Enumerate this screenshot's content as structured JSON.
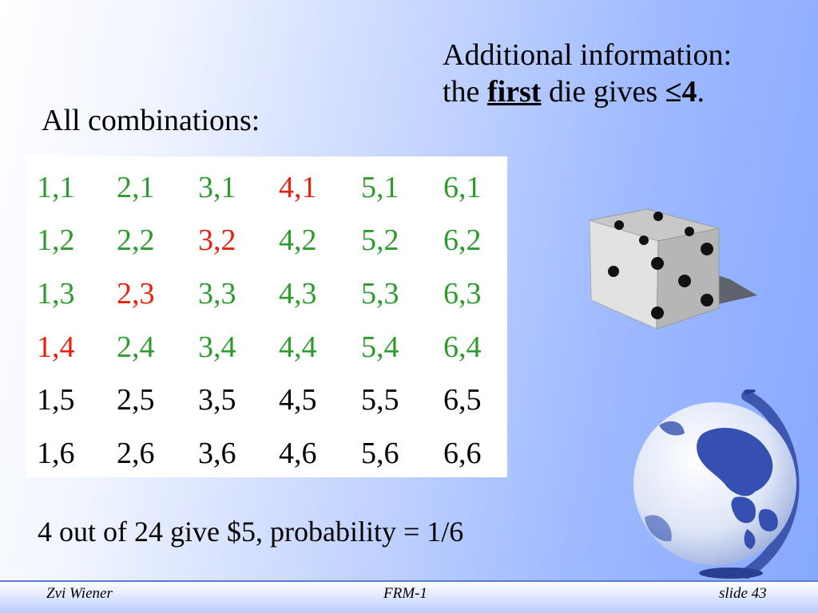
{
  "slide": {
    "info_line1": "Additional information:",
    "info_line2_prefix": "the ",
    "info_line2_first": "first",
    "info_line2_mid": " die gives ",
    "info_line2_value": "≤4",
    "info_line2_end": ".",
    "combos_title": "All combinations:",
    "result": "4 out of 24 give $5, probability = 1/6"
  },
  "colors": {
    "green": "#2e9b2e",
    "red": "#e8210c",
    "black": "#000000"
  },
  "table": {
    "rows": [
      [
        {
          "t": "1,1",
          "c": "green"
        },
        {
          "t": "2,1",
          "c": "green"
        },
        {
          "t": "3,1",
          "c": "green"
        },
        {
          "t": "4,1",
          "c": "red"
        },
        {
          "t": "5,1",
          "c": "green"
        },
        {
          "t": "6,1",
          "c": "green"
        }
      ],
      [
        {
          "t": "1,2",
          "c": "green"
        },
        {
          "t": "2,2",
          "c": "green"
        },
        {
          "t": "3,2",
          "c": "red"
        },
        {
          "t": "4,2",
          "c": "green"
        },
        {
          "t": "5,2",
          "c": "green"
        },
        {
          "t": "6,2",
          "c": "green"
        }
      ],
      [
        {
          "t": "1,3",
          "c": "green"
        },
        {
          "t": "2,3",
          "c": "red"
        },
        {
          "t": "3,3",
          "c": "green"
        },
        {
          "t": "4,3",
          "c": "green"
        },
        {
          "t": "5,3",
          "c": "green"
        },
        {
          "t": "6,3",
          "c": "green"
        }
      ],
      [
        {
          "t": "1,4",
          "c": "red"
        },
        {
          "t": "2,4",
          "c": "green"
        },
        {
          "t": "3,4",
          "c": "green"
        },
        {
          "t": "4,4",
          "c": "green"
        },
        {
          "t": "5,4",
          "c": "green"
        },
        {
          "t": "6,4",
          "c": "green"
        }
      ],
      [
        {
          "t": "1,5",
          "c": "black"
        },
        {
          "t": "2,5",
          "c": "black"
        },
        {
          "t": "3,5",
          "c": "black"
        },
        {
          "t": "4,5",
          "c": "black"
        },
        {
          "t": "5,5",
          "c": "black"
        },
        {
          "t": "6,5",
          "c": "black"
        }
      ],
      [
        {
          "t": "1,6",
          "c": "black"
        },
        {
          "t": "2,6",
          "c": "black"
        },
        {
          "t": "3,6",
          "c": "black"
        },
        {
          "t": "4,6",
          "c": "black"
        },
        {
          "t": "5,6",
          "c": "black"
        },
        {
          "t": "6,6",
          "c": "black"
        }
      ]
    ]
  },
  "footer": {
    "left": "Zvi Wiener",
    "center": "FRM-1",
    "right": "slide 43"
  },
  "icons": {
    "die": "die-icon",
    "globe": "globe-icon"
  }
}
